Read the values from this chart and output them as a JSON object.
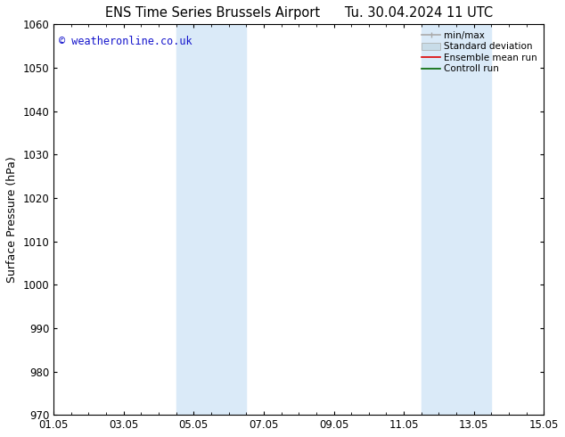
{
  "title": "ENS Time Series Brussels Airport      Tu. 30.04.2024 11 UTC",
  "ylabel": "Surface Pressure (hPa)",
  "xlim_dates": [
    "01.05",
    "03.05",
    "05.05",
    "07.05",
    "09.05",
    "11.05",
    "13.05",
    "15.05"
  ],
  "xtick_positions": [
    0,
    2,
    4,
    6,
    8,
    10,
    12,
    14
  ],
  "xlim": [
    0,
    14
  ],
  "ylim": [
    970,
    1060
  ],
  "yticks": [
    970,
    980,
    990,
    1000,
    1010,
    1020,
    1030,
    1040,
    1050,
    1060
  ],
  "background_color": "#ffffff",
  "plot_bg_color": "#ffffff",
  "shaded_bands": [
    {
      "x_start": 3.5,
      "x_end": 5.5,
      "color": "#daeaf8"
    },
    {
      "x_start": 10.5,
      "x_end": 12.5,
      "color": "#daeaf8"
    }
  ],
  "watermark_text": "© weatheronline.co.uk",
  "watermark_color": "#1515cc",
  "watermark_fontsize": 8.5,
  "legend_entries": [
    {
      "label": "min/max"
    },
    {
      "label": "Standard deviation"
    },
    {
      "label": "Ensemble mean run"
    },
    {
      "label": "Controll run"
    }
  ],
  "legend_colors": [
    "#aaaaaa",
    "#c8dce8",
    "#dd0000",
    "#006600"
  ],
  "tick_color": "#000000",
  "spine_color": "#000000",
  "title_fontsize": 10.5,
  "axis_label_fontsize": 9,
  "tick_fontsize": 8.5
}
